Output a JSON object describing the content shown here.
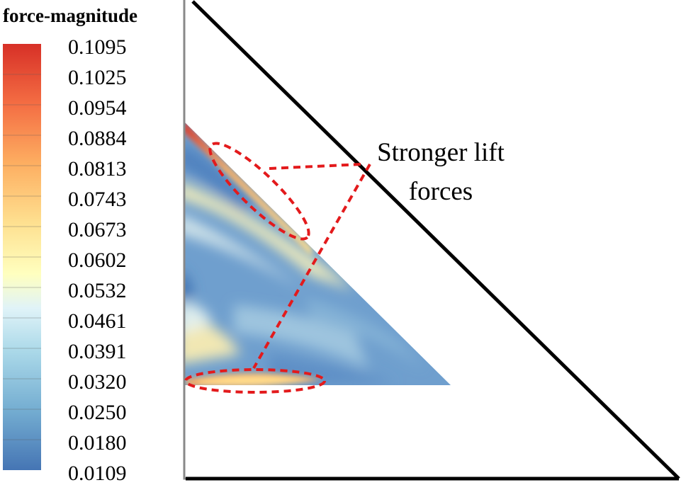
{
  "legend": {
    "title": "force-magnitude",
    "ticks": [
      "0.1095",
      "0.1025",
      "0.0954",
      "0.0884",
      "0.0813",
      "0.0743",
      "0.0673",
      "0.0602",
      "0.0532",
      "0.0461",
      "0.0391",
      "0.0320",
      "0.0250",
      "0.0180",
      "0.0109"
    ],
    "color_stops": [
      "#d73027",
      "#f46d43",
      "#fdae61",
      "#fee090",
      "#ffffbf",
      "#e0f3f8",
      "#abd9e9",
      "#74add1",
      "#4575b4"
    ]
  },
  "annotation": {
    "line1": "Stronger lift",
    "line2": "forces",
    "marker_color": "#e31a1c"
  }
}
